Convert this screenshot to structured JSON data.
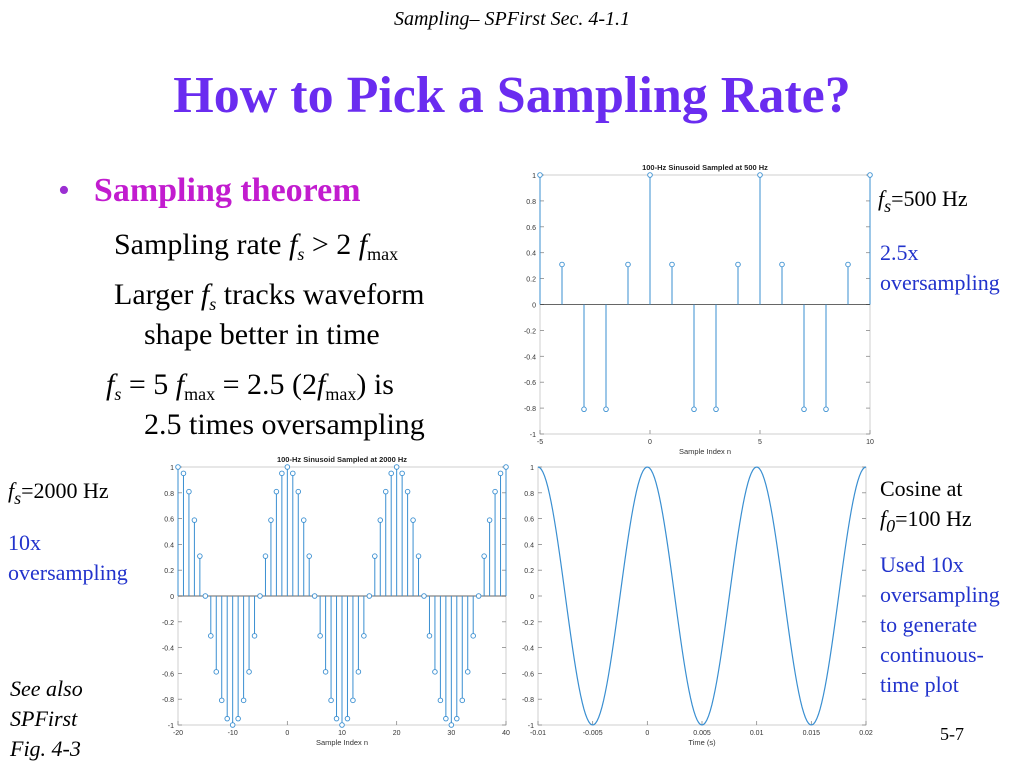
{
  "header": "Sampling– SPFirst Sec. 4-1.1",
  "title": "How to Pick a Sampling Rate?",
  "bullet": "Sampling theorem",
  "text": {
    "l1_a": "Sampling rate",
    "f": "f",
    "s": "s",
    "max": "max",
    "gt2": "> 2",
    "l2_a": "Larger",
    "l2_b": "tracks waveform",
    "l3": "shape better in time",
    "eq5": "= 5",
    "eq25": "= 2.5 (2",
    "is": ") is",
    "l5": "2.5 times oversampling"
  },
  "side": {
    "fs500": "=500 Hz",
    "over25_a": "2.5x",
    "over25_b": "oversampling",
    "fs2000": "=2000 Hz",
    "over10_a": "10x",
    "over10_b": "oversampling",
    "cos_a": "Cosine at",
    "f0": "f",
    "zero": "0",
    "f0val": "=100 Hz",
    "used1": "Used 10x",
    "used2": "oversampling",
    "used3": "to generate",
    "used4": "continuous-",
    "used5": "time plot",
    "see1": "See also",
    "see2": "SPFirst",
    "see3": "Fig. 4-3"
  },
  "page_number": "5-7",
  "colors": {
    "title": "#6a2cf0",
    "bullet": "#c21ccf",
    "note": "#2233cc",
    "stem": "#3a8fd1"
  },
  "chart_data": [
    {
      "type": "stem",
      "title": "100-Hz Sinusoid Sampled at 500 Hz",
      "xlabel": "Sample Index n",
      "ylabel": "",
      "xlim": [
        -5,
        10
      ],
      "ylim": [
        -1,
        1
      ],
      "xticks": [
        "-5",
        "0",
        "5",
        "10"
      ],
      "yticks": [
        "-1",
        "-0.8",
        "-0.6",
        "-0.4",
        "-0.2",
        "0",
        "0.2",
        "0.4",
        "0.6",
        "0.8",
        "1"
      ],
      "x": [
        -5,
        -4,
        -3,
        -2,
        -1,
        0,
        1,
        2,
        3,
        4,
        5,
        6,
        7,
        8,
        9,
        10
      ],
      "y": [
        1,
        0.309,
        -0.809,
        -0.809,
        0.309,
        1,
        0.309,
        -0.809,
        -0.809,
        0.309,
        1,
        0.309,
        -0.809,
        -0.809,
        0.309,
        1
      ]
    },
    {
      "type": "stem",
      "title": "100-Hz Sinusoid Sampled at 2000 Hz",
      "xlabel": "Sample Index n",
      "ylabel": "",
      "xlim": [
        -20,
        40
      ],
      "ylim": [
        -1,
        1
      ],
      "xticks": [
        "-20",
        "-10",
        "0",
        "10",
        "20",
        "30",
        "40"
      ],
      "yticks": [
        "-1",
        "-0.8",
        "-0.6",
        "-0.4",
        "-0.2",
        "0",
        "0.2",
        "0.4",
        "0.6",
        "0.8",
        "1"
      ],
      "x": [
        -20,
        -19,
        -18,
        -17,
        -16,
        -15,
        -14,
        -13,
        -12,
        -11,
        -10,
        -9,
        -8,
        -7,
        -6,
        -5,
        -4,
        -3,
        -2,
        -1,
        0,
        1,
        2,
        3,
        4,
        5,
        6,
        7,
        8,
        9,
        10,
        11,
        12,
        13,
        14,
        15,
        16,
        17,
        18,
        19,
        20,
        21,
        22,
        23,
        24,
        25,
        26,
        27,
        28,
        29,
        30,
        31,
        32,
        33,
        34,
        35,
        36,
        37,
        38,
        39,
        40
      ],
      "y": [
        1,
        0.951,
        0.809,
        0.588,
        0.309,
        0,
        -0.309,
        -0.588,
        -0.809,
        -0.951,
        -1,
        -0.951,
        -0.809,
        -0.588,
        -0.309,
        0,
        0.309,
        0.588,
        0.809,
        0.951,
        1,
        0.951,
        0.809,
        0.588,
        0.309,
        0,
        -0.309,
        -0.588,
        -0.809,
        -0.951,
        -1,
        -0.951,
        -0.809,
        -0.588,
        -0.309,
        0,
        0.309,
        0.588,
        0.809,
        0.951,
        1,
        0.951,
        0.809,
        0.588,
        0.309,
        0,
        -0.309,
        -0.588,
        -0.809,
        -0.951,
        -1,
        -0.951,
        -0.809,
        -0.588,
        -0.309,
        0,
        0.309,
        0.588,
        0.809,
        0.951,
        1
      ]
    },
    {
      "type": "line",
      "title": "",
      "xlabel": "Time (s)",
      "ylabel": "",
      "xlim": [
        -0.01,
        0.02
      ],
      "ylim": [
        -1,
        1
      ],
      "xticks": [
        "-0.01",
        "-0.005",
        "0",
        "0.005",
        "0.01",
        "0.015",
        "0.02"
      ],
      "yticks": [
        "-1",
        "-0.8",
        "-0.6",
        "-0.4",
        "-0.2",
        "0",
        "0.2",
        "0.4",
        "0.6",
        "0.8",
        "1"
      ],
      "function": "cos(2*pi*100*t)",
      "frequency_hz": 100,
      "points": 200
    }
  ]
}
